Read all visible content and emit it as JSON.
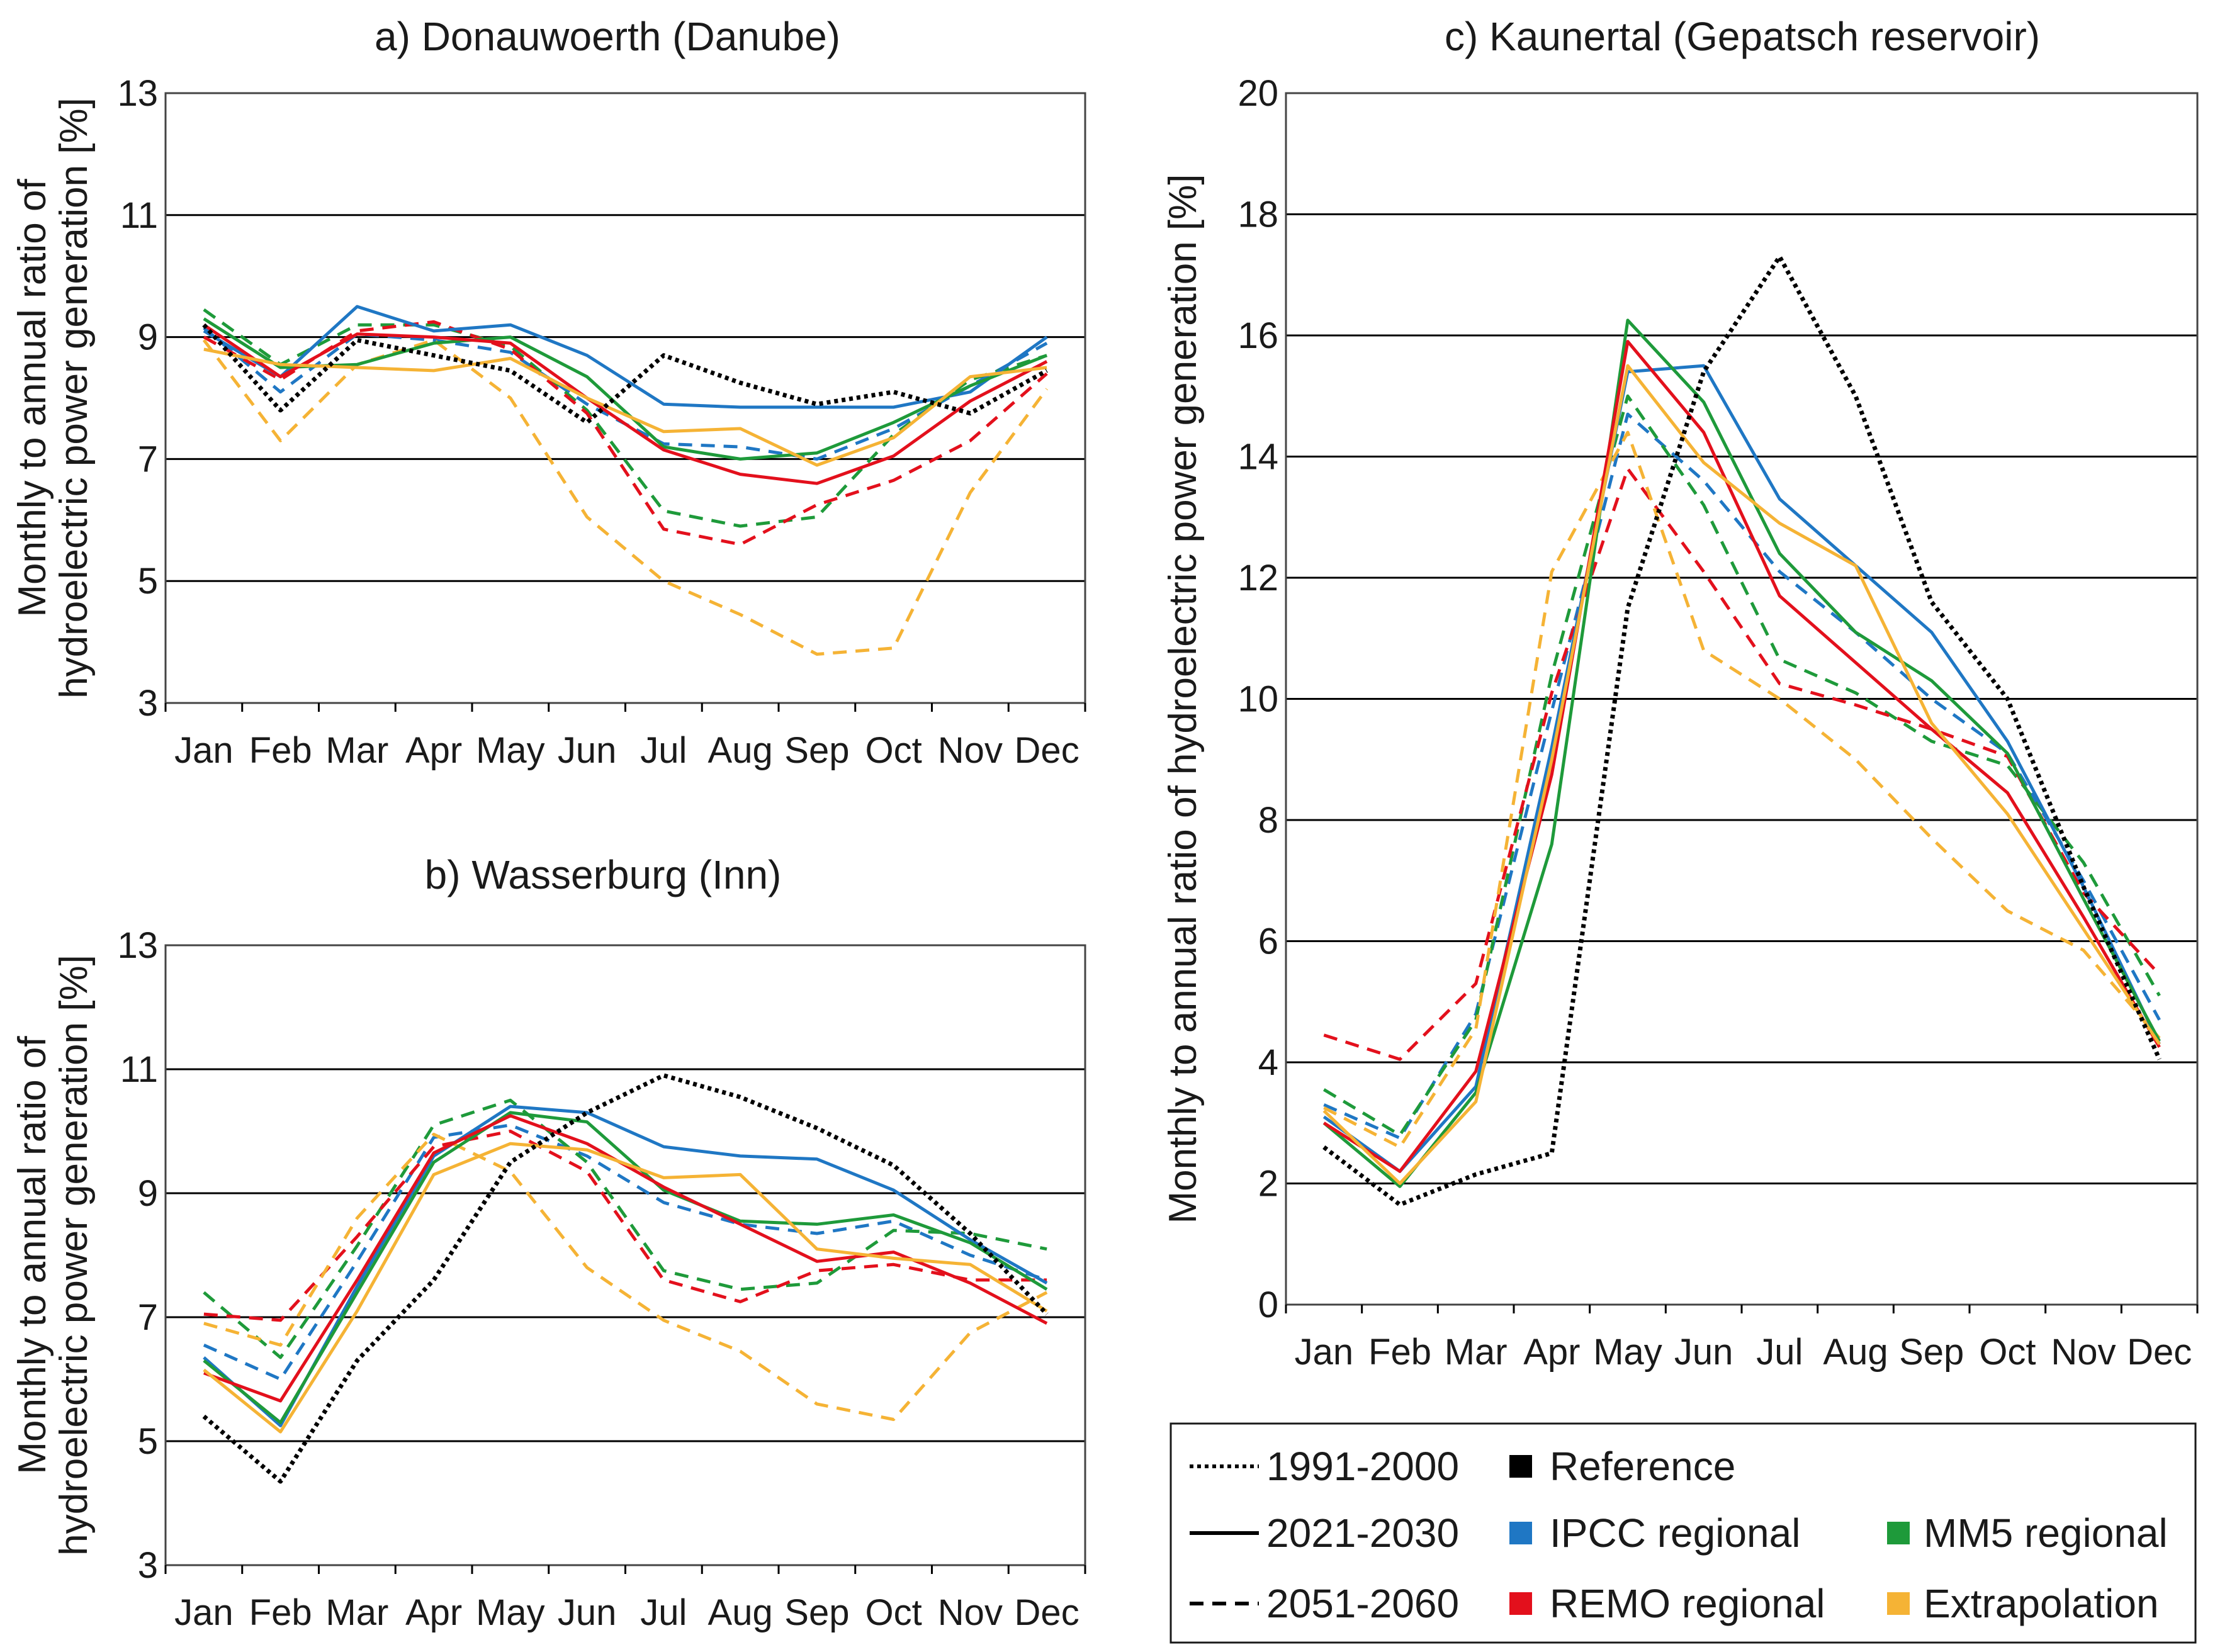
{
  "months": [
    "Jan",
    "Feb",
    "Mar",
    "Apr",
    "May",
    "Jun",
    "Jul",
    "Aug",
    "Sep",
    "Oct",
    "Nov",
    "Dec"
  ],
  "y_axis_title_line1": "Monthly to annual ratio of",
  "y_axis_title_line2": "hydroelectric power generation [%]",
  "y_axis_title_single": "Monthly to annual ratio of hydroelectric power generation [%]",
  "colors": {
    "Reference": "#000000",
    "IPCC regional": "#1f77c4",
    "MM5 regional": "#1e9a3a",
    "REMO regional": "#e3101c",
    "Extrapolation": "#f5b335"
  },
  "legend": {
    "periods": [
      {
        "label": "1991-2000",
        "style": "dotted"
      },
      {
        "label": "2021-2030",
        "style": "solid"
      },
      {
        "label": "2051-2060",
        "style": "dashed"
      }
    ],
    "scenarios": [
      {
        "label": "Reference",
        "color": "#000000"
      },
      {
        "label": "IPCC regional",
        "color": "#1f77c4"
      },
      {
        "label": "REMO regional",
        "color": "#e3101c"
      },
      {
        "label": "MM5 regional",
        "color": "#1e9a3a"
      },
      {
        "label": "Extrapolation",
        "color": "#f5b335"
      }
    ]
  },
  "chart_data": [
    {
      "id": "a",
      "type": "line",
      "title": "a) Donauwoerth (Danube)",
      "ylabel": "Monthly to annual ratio of hydroelectric power generation [%]",
      "ylim": [
        3,
        13
      ],
      "yticks": [
        3,
        5,
        7,
        9,
        11,
        13
      ],
      "series": [
        {
          "name": "Reference",
          "period": "1991-2000",
          "values": [
            9.2,
            7.8,
            8.95,
            8.7,
            8.45,
            7.6,
            8.7,
            8.25,
            7.9,
            8.1,
            7.75,
            8.45
          ]
        },
        {
          "name": "IPCC regional",
          "period": "2021-2030",
          "values": [
            9.1,
            8.35,
            9.5,
            9.1,
            9.2,
            8.7,
            7.9,
            7.85,
            7.85,
            7.85,
            8.1,
            9.0
          ]
        },
        {
          "name": "MM5 regional",
          "period": "2021-2030",
          "values": [
            9.3,
            8.5,
            8.55,
            8.9,
            9.0,
            8.35,
            7.2,
            7.0,
            7.1,
            7.6,
            8.2,
            8.7
          ]
        },
        {
          "name": "REMO regional",
          "period": "2021-2030",
          "values": [
            9.2,
            8.35,
            9.05,
            9.0,
            8.9,
            8.0,
            7.15,
            6.75,
            6.6,
            7.05,
            7.95,
            8.6
          ]
        },
        {
          "name": "Extrapolation",
          "period": "2021-2030",
          "values": [
            8.8,
            8.55,
            8.5,
            8.45,
            8.65,
            8.0,
            7.45,
            7.5,
            6.9,
            7.35,
            8.35,
            8.5
          ]
        },
        {
          "name": "IPCC regional",
          "period": "2051-2060",
          "values": [
            9.15,
            8.1,
            9.05,
            8.95,
            8.75,
            7.9,
            7.25,
            7.2,
            7.0,
            7.5,
            8.2,
            8.9
          ]
        },
        {
          "name": "MM5 regional",
          "period": "2051-2060",
          "values": [
            9.45,
            8.55,
            9.2,
            9.2,
            8.85,
            7.8,
            6.15,
            5.9,
            6.05,
            7.4,
            8.3,
            8.7
          ]
        },
        {
          "name": "REMO regional",
          "period": "2051-2060",
          "values": [
            9.0,
            8.3,
            9.1,
            9.25,
            8.8,
            7.75,
            5.85,
            5.6,
            6.25,
            6.65,
            7.3,
            8.4
          ]
        },
        {
          "name": "Extrapolation",
          "period": "2051-2060",
          "values": [
            8.95,
            7.3,
            8.55,
            8.95,
            8.0,
            6.05,
            5.0,
            4.45,
            3.8,
            3.9,
            6.45,
            8.15
          ]
        }
      ]
    },
    {
      "id": "b",
      "type": "line",
      "title": "b) Wasserburg (Inn)",
      "ylabel": "Monthly to annual ratio of hydroelectric power generation [%]",
      "ylim": [
        3,
        13
      ],
      "yticks": [
        3,
        5,
        7,
        9,
        11,
        13
      ],
      "series": [
        {
          "name": "Reference",
          "period": "1991-2000",
          "values": [
            5.4,
            4.35,
            6.3,
            7.6,
            9.5,
            10.3,
            10.9,
            10.55,
            10.05,
            9.45,
            8.35,
            7.05
          ]
        },
        {
          "name": "IPCC regional",
          "period": "2021-2030",
          "values": [
            6.35,
            5.25,
            7.5,
            9.6,
            10.4,
            10.3,
            9.75,
            9.6,
            9.55,
            9.05,
            8.25,
            7.55
          ]
        },
        {
          "name": "MM5 regional",
          "period": "2021-2030",
          "values": [
            6.3,
            5.3,
            7.4,
            9.5,
            10.3,
            10.15,
            9.05,
            8.55,
            8.5,
            8.65,
            8.2,
            7.45
          ]
        },
        {
          "name": "REMO regional",
          "period": "2021-2030",
          "values": [
            6.1,
            5.65,
            7.6,
            9.65,
            10.25,
            9.8,
            9.1,
            8.5,
            7.9,
            8.05,
            7.55,
            6.9
          ]
        },
        {
          "name": "Extrapolation",
          "period": "2021-2030",
          "values": [
            6.15,
            5.15,
            7.1,
            9.3,
            9.8,
            9.7,
            9.25,
            9.3,
            8.1,
            7.95,
            7.85,
            7.1
          ]
        },
        {
          "name": "IPCC regional",
          "period": "2051-2060",
          "values": [
            6.55,
            6.0,
            7.9,
            9.9,
            10.1,
            9.6,
            8.85,
            8.5,
            8.35,
            8.55,
            8.0,
            7.6
          ]
        },
        {
          "name": "MM5 regional",
          "period": "2051-2060",
          "values": [
            7.4,
            6.35,
            8.15,
            10.1,
            10.5,
            9.5,
            7.75,
            7.45,
            7.55,
            8.4,
            8.35,
            8.1
          ]
        },
        {
          "name": "REMO regional",
          "period": "2051-2060",
          "values": [
            7.05,
            6.95,
            8.3,
            9.75,
            10.0,
            9.35,
            7.6,
            7.25,
            7.75,
            7.85,
            7.6,
            7.6
          ]
        },
        {
          "name": "Extrapolation",
          "period": "2051-2060",
          "values": [
            6.9,
            6.55,
            8.6,
            9.95,
            9.35,
            7.8,
            6.95,
            6.45,
            5.6,
            5.35,
            6.75,
            7.4
          ]
        }
      ]
    },
    {
      "id": "c",
      "type": "line",
      "title": "c) Kaunertal (Gepatsch reservoir)",
      "ylabel": "Monthly to annual ratio of hydroelectric power generation [%]",
      "ylim": [
        0,
        20
      ],
      "yticks": [
        0,
        2,
        4,
        6,
        8,
        10,
        12,
        14,
        16,
        18,
        20
      ],
      "series": [
        {
          "name": "Reference",
          "period": "1991-2000",
          "values": [
            2.6,
            1.65,
            2.15,
            2.5,
            11.5,
            15.4,
            17.3,
            15.0,
            11.6,
            10.0,
            6.9,
            4.05
          ]
        },
        {
          "name": "IPCC regional",
          "period": "2021-2030",
          "values": [
            3.1,
            2.2,
            3.6,
            9.2,
            15.4,
            15.5,
            13.3,
            12.2,
            11.1,
            9.3,
            6.9,
            4.3
          ]
        },
        {
          "name": "MM5 regional",
          "period": "2021-2030",
          "values": [
            3.0,
            1.95,
            3.5,
            7.6,
            16.25,
            14.9,
            12.4,
            11.1,
            10.3,
            9.1,
            6.7,
            4.35
          ]
        },
        {
          "name": "REMO regional",
          "period": "2021-2030",
          "values": [
            3.0,
            2.2,
            3.85,
            8.75,
            15.9,
            14.4,
            11.7,
            10.6,
            9.5,
            8.45,
            6.4,
            4.25
          ]
        },
        {
          "name": "Extrapolation",
          "period": "2021-2030",
          "values": [
            3.2,
            2.0,
            3.35,
            9.0,
            15.5,
            13.9,
            12.9,
            12.2,
            9.6,
            8.1,
            6.2,
            4.3
          ]
        },
        {
          "name": "IPCC regional",
          "period": "2051-2060",
          "values": [
            3.3,
            2.75,
            4.8,
            9.8,
            14.7,
            13.6,
            12.1,
            11.1,
            10.0,
            9.1,
            7.0,
            4.7
          ]
        },
        {
          "name": "MM5 regional",
          "period": "2051-2060",
          "values": [
            3.55,
            2.8,
            4.7,
            10.4,
            15.0,
            13.2,
            10.65,
            10.1,
            9.3,
            8.9,
            7.3,
            5.1
          ]
        },
        {
          "name": "REMO regional",
          "period": "2051-2060",
          "values": [
            4.45,
            4.05,
            5.3,
            10.1,
            13.8,
            12.1,
            10.25,
            9.9,
            9.5,
            9.05,
            6.8,
            5.45
          ]
        },
        {
          "name": "Extrapolation",
          "period": "2051-2060",
          "values": [
            3.25,
            2.6,
            4.55,
            12.1,
            14.4,
            10.8,
            10.0,
            9.0,
            7.7,
            6.5,
            5.85,
            4.4
          ]
        }
      ]
    }
  ]
}
